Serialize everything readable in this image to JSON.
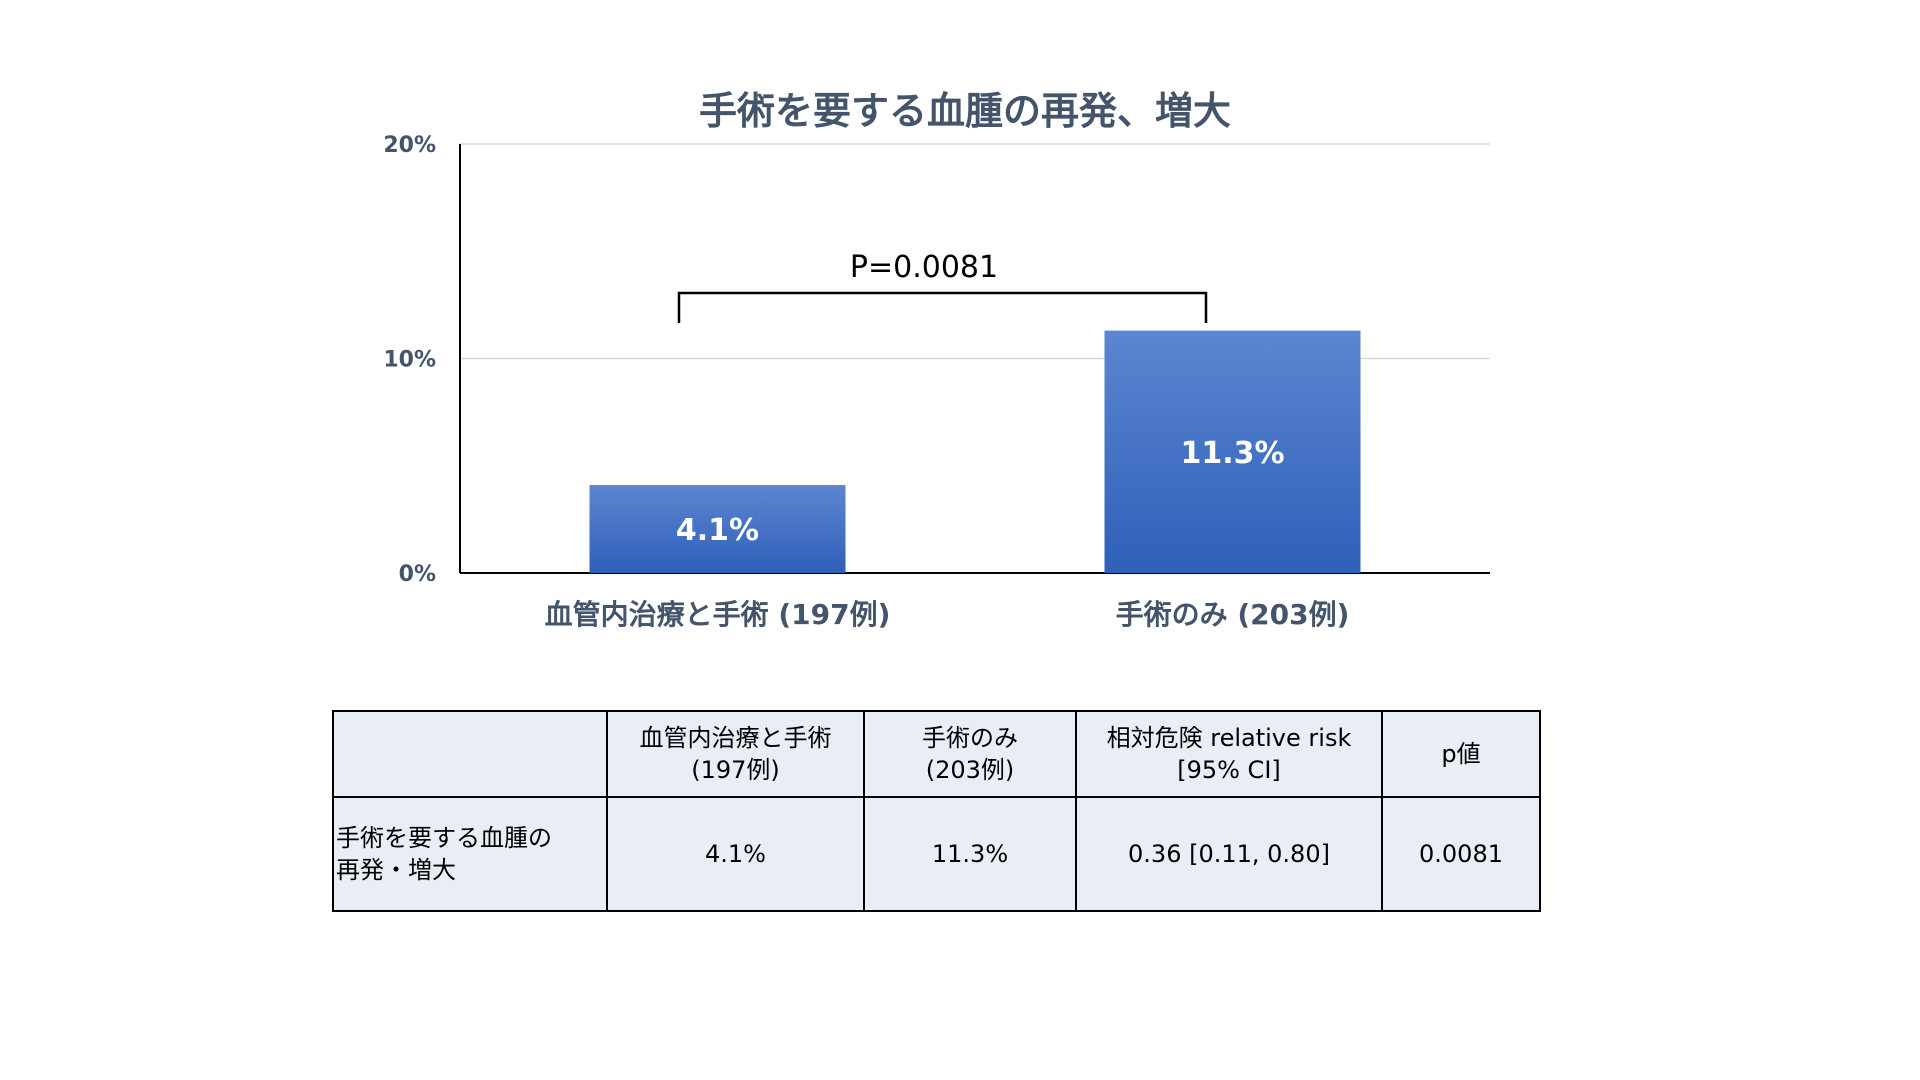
{
  "chart_data": {
    "type": "bar",
    "title": "手術を要する血腫の再発、増大",
    "categories": [
      "血管内治療と手術 (197例)",
      "手術のみ (203例)"
    ],
    "values": [
      4.1,
      11.3
    ],
    "data_labels": [
      "4.1%",
      "11.3%"
    ],
    "ylim": [
      0,
      20
    ],
    "y_ticks": [
      0,
      10,
      20
    ],
    "y_tick_labels": [
      "0%",
      "10%",
      "20%"
    ],
    "grid": true,
    "annotation": "P=0.0081",
    "bar_color_top": "#5b86d0",
    "bar_color_bottom": "#2f5fb9"
  },
  "table": {
    "headers": [
      [
        ""
      ],
      [
        "血管内治療と手術",
        "(197例)"
      ],
      [
        "手術のみ",
        "(203例)"
      ],
      [
        "相対危険 relative risk",
        "[95% CI]"
      ],
      [
        "p値"
      ]
    ],
    "row": {
      "label": [
        "手術を要する血腫の",
        "再発・増大"
      ],
      "cells": [
        "4.1%",
        "11.3%",
        "0.36 [0.11, 0.80]",
        "0.0081"
      ]
    }
  }
}
